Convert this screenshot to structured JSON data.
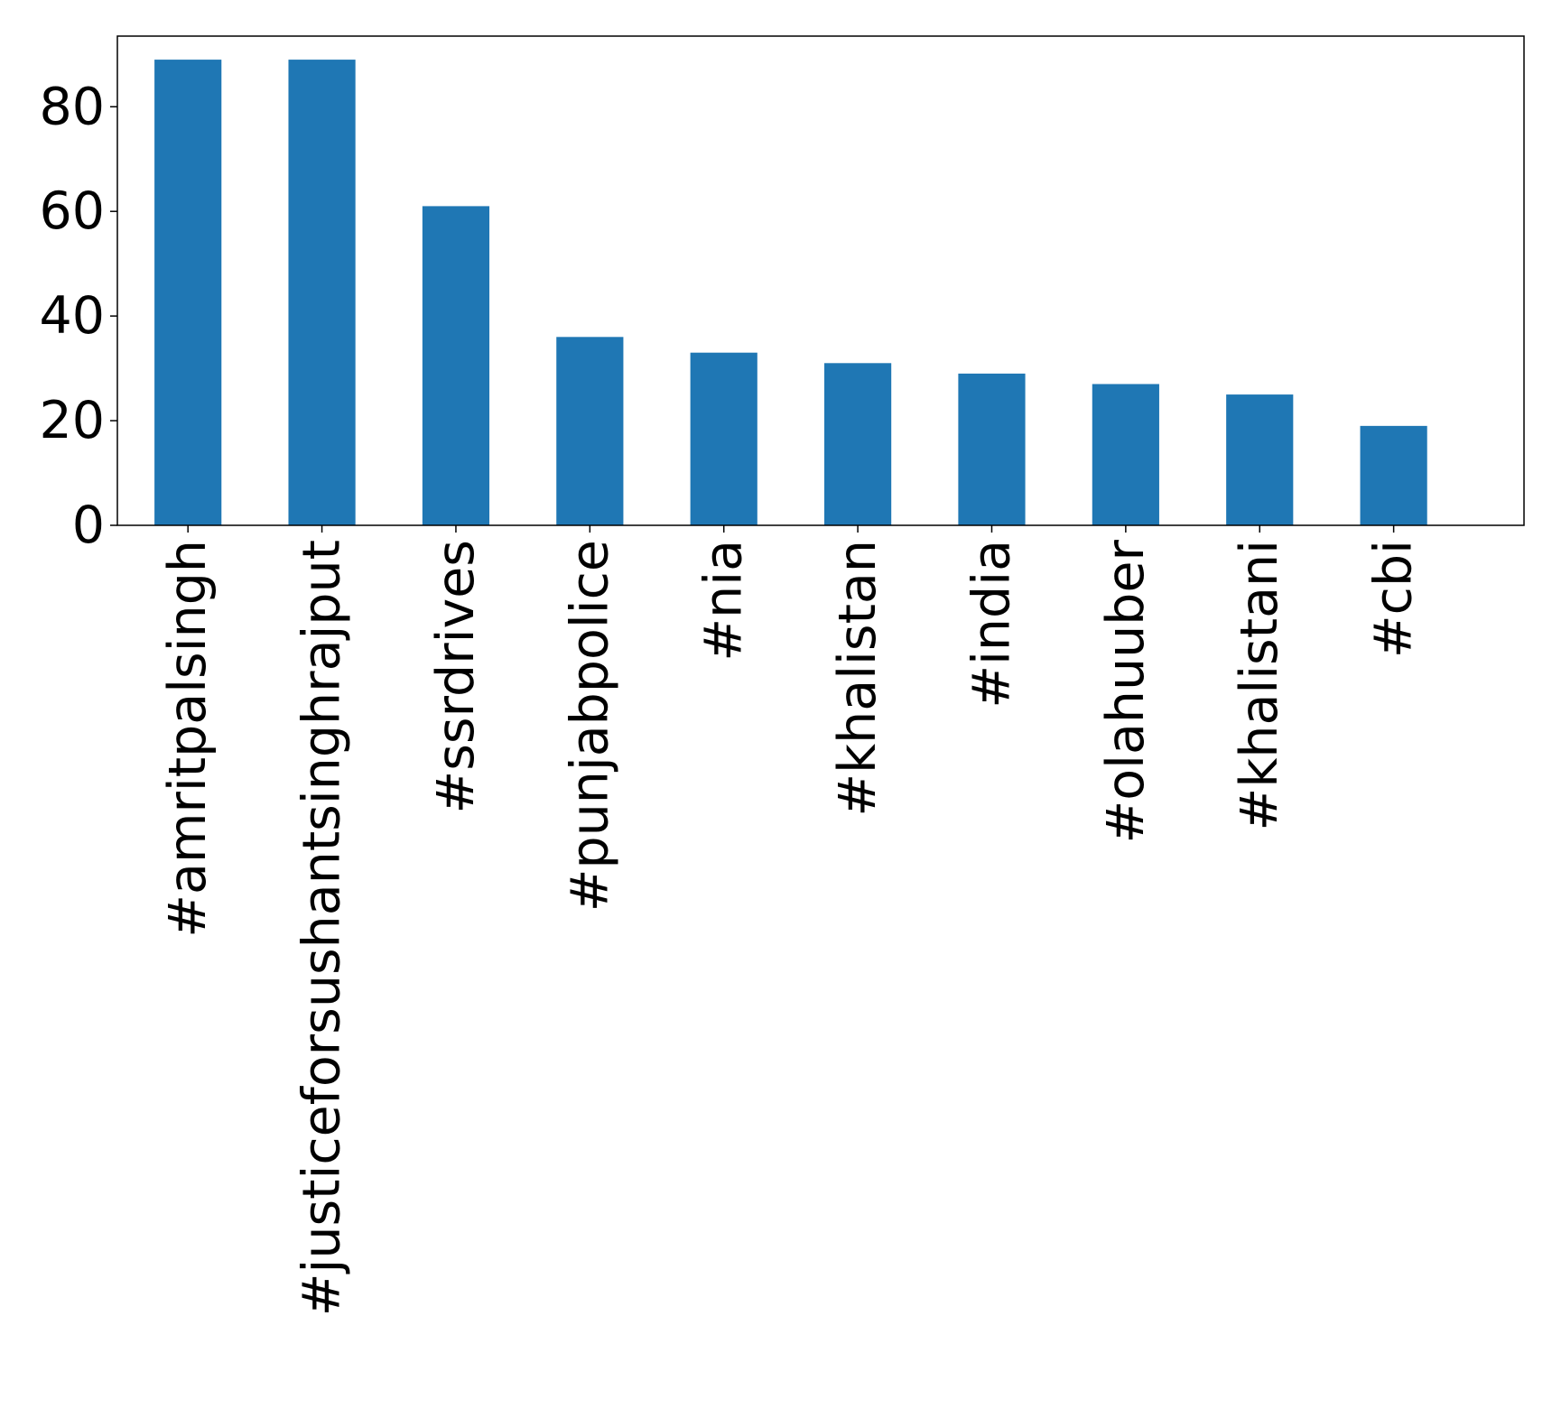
{
  "chart_data": {
    "type": "bar",
    "categories": [
      "#amritpalsingh",
      "#justiceforsushantsinghrajput",
      "#ssrdrives",
      "#punjabpolice",
      "#nia",
      "#khalistan",
      "#india",
      "#olahuuber",
      "#khalistani",
      "#cbi"
    ],
    "values": [
      89,
      89,
      61,
      36,
      33,
      31,
      29,
      27,
      25,
      19
    ],
    "ylim": [
      0,
      93.5
    ],
    "yticks": [
      0,
      20,
      40,
      60,
      80
    ],
    "grid": false,
    "legend": "none",
    "bar_color": "#1f77b4"
  }
}
